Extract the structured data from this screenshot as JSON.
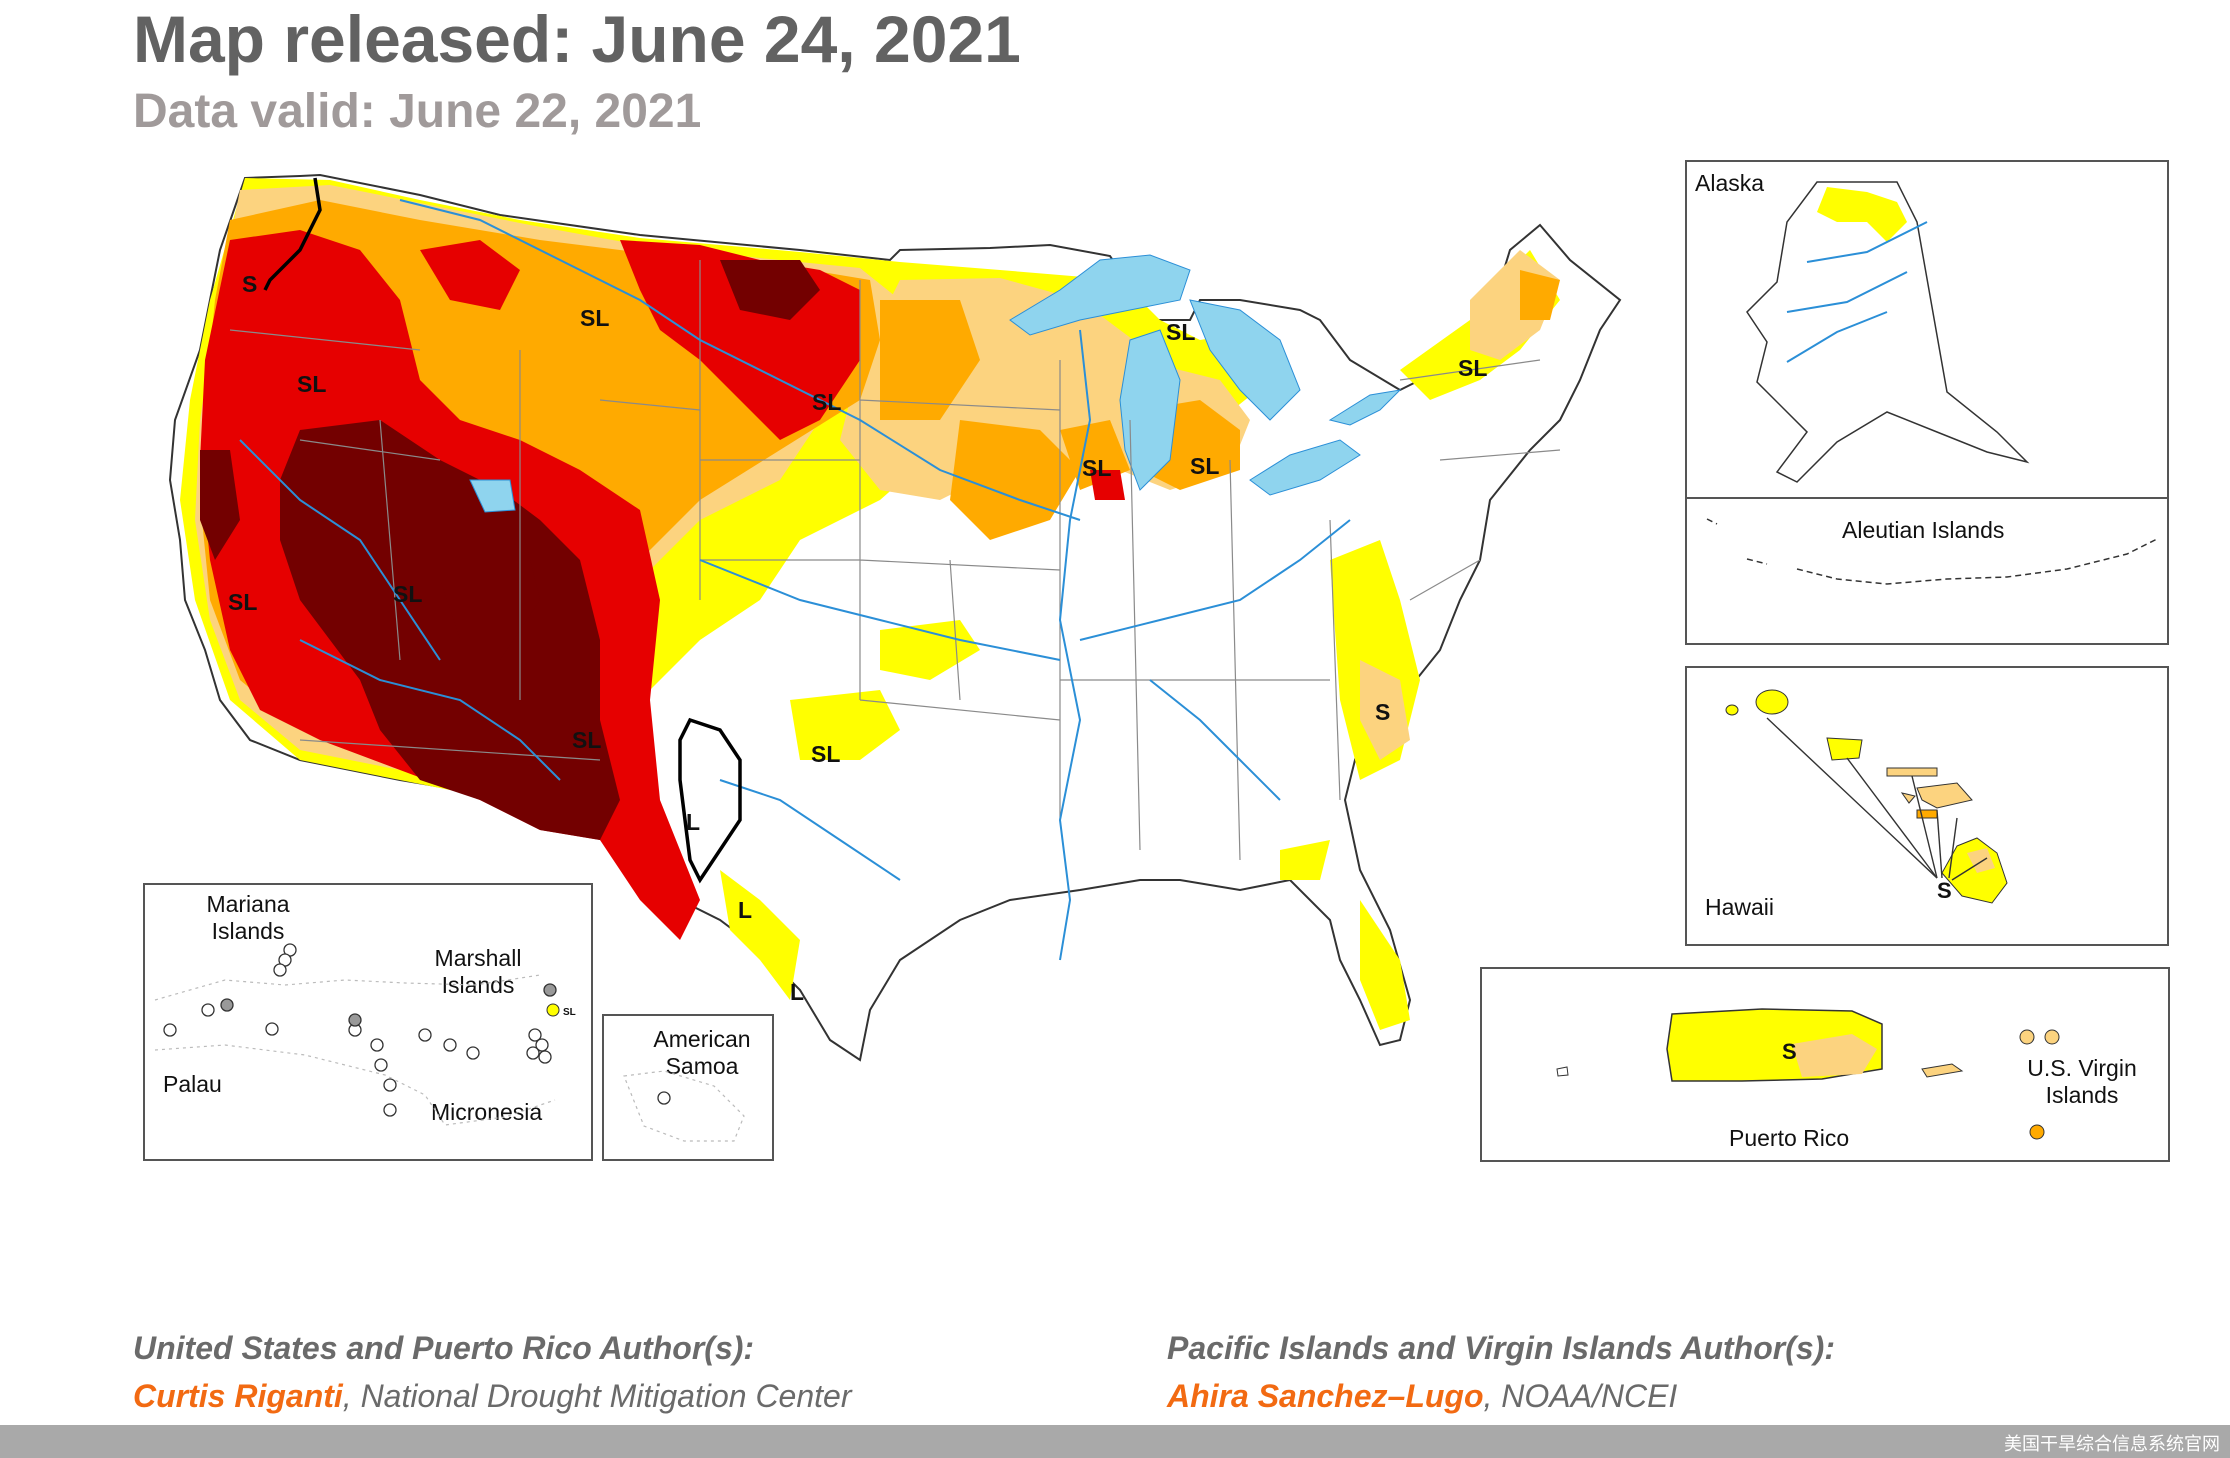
{
  "header": {
    "title": "Map released: June 24, 2021",
    "subtitle": "Data valid: June 22, 2021"
  },
  "map": {
    "categories": [
      "S",
      "SL",
      "L"
    ],
    "labels": {
      "sl": "SL",
      "s": "S",
      "l": "L"
    },
    "colors": {
      "D0": "#ffff00",
      "D1": "#fcd37f",
      "D2": "#ffaa00",
      "D3": "#e60000",
      "D4": "#730000",
      "water": "#8fd4ee",
      "river": "#2b8fd7",
      "state_border": "#8a8a8a",
      "impact_line": "#000000"
    }
  },
  "insets": {
    "alaska": "Alaska",
    "aleutian": "Aleutian Islands",
    "hawaii": "Hawaii",
    "puerto_rico": "Puerto Rico",
    "virgin_islands": "U.S. Virgin Islands",
    "mariana": "Mariana Islands",
    "marshall": "Marshall Islands",
    "palau": "Palau",
    "micronesia": "Micronesia",
    "american_samoa": "American Samoa"
  },
  "authors": {
    "us_head": "United States and Puerto Rico Author(s):",
    "us_name": "Curtis Riganti",
    "us_org": ", National Drought Mitigation Center",
    "pi_head": "Pacific Islands and Virgin Islands Author(s):",
    "pi_name": "Ahira Sanchez–Lugo",
    "pi_org": ", NOAA/NCEI"
  },
  "footer": {
    "text": "美国干旱综合信息系统官网"
  }
}
